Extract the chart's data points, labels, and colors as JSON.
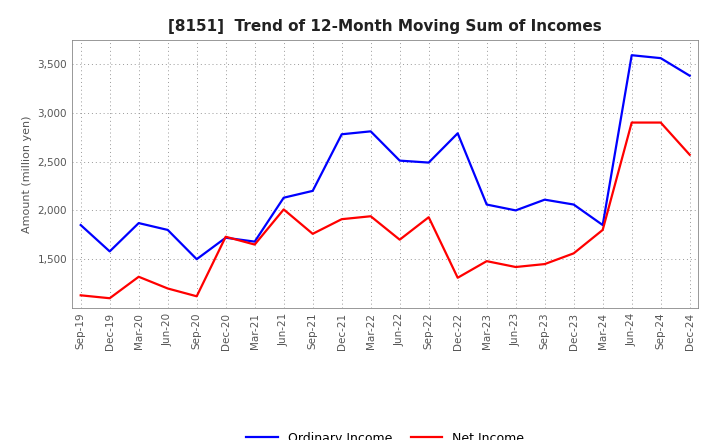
{
  "title": "[8151]  Trend of 12-Month Moving Sum of Incomes",
  "ylabel": "Amount (million yen)",
  "background_color": "#ffffff",
  "grid_color": "#999999",
  "x_labels": [
    "Sep-19",
    "Dec-19",
    "Mar-20",
    "Jun-20",
    "Sep-20",
    "Dec-20",
    "Mar-21",
    "Jun-21",
    "Sep-21",
    "Dec-21",
    "Mar-22",
    "Jun-22",
    "Sep-22",
    "Dec-22",
    "Mar-23",
    "Jun-23",
    "Sep-23",
    "Dec-23",
    "Mar-24",
    "Jun-24",
    "Sep-24",
    "Dec-24"
  ],
  "ordinary_income": [
    1850,
    1580,
    1870,
    1800,
    1500,
    1720,
    1680,
    2130,
    2200,
    2780,
    2810,
    2510,
    2490,
    2790,
    2060,
    2000,
    2110,
    2060,
    1850,
    3590,
    3560,
    3380
  ],
  "net_income": [
    1130,
    1100,
    1320,
    1200,
    1120,
    1730,
    1650,
    2010,
    1760,
    1910,
    1940,
    1700,
    1930,
    1310,
    1480,
    1420,
    1450,
    1560,
    1800,
    2900,
    2900,
    2570
  ],
  "ordinary_color": "#0000ff",
  "net_color": "#ff0000",
  "ylim_min": 1000,
  "ylim_max": 3750,
  "yticks": [
    1500,
    2000,
    2500,
    3000,
    3500
  ],
  "line_width": 1.6,
  "legend_labels": [
    "Ordinary Income",
    "Net Income"
  ],
  "title_fontsize": 11,
  "ylabel_fontsize": 8,
  "tick_fontsize": 7.5,
  "legend_fontsize": 9
}
